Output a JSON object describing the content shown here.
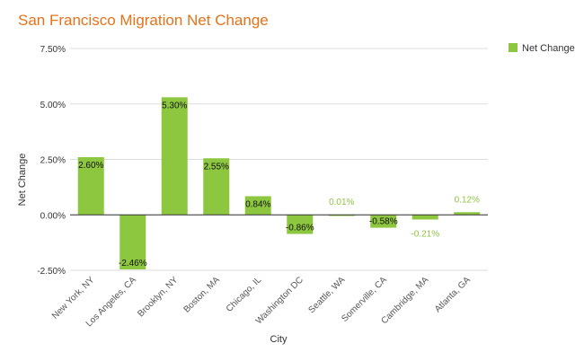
{
  "chart_data": {
    "type": "bar",
    "title": "San Francisco Migration Net Change",
    "xlabel": "City",
    "ylabel": "Net Change",
    "categories": [
      "New York, NY",
      "Los Angeles, CA",
      "Brooklyn, NY",
      "Boston, MA",
      "Chicago, IL",
      "Washington DC",
      "Seattle, WA",
      "Somerville, CA",
      "Cambridge, MA",
      "Atlanta, GA"
    ],
    "series": [
      {
        "name": "Net Change",
        "values": [
          2.6,
          -2.46,
          5.3,
          2.55,
          0.84,
          -0.86,
          0.01,
          -0.58,
          -0.21,
          0.12
        ],
        "labels": [
          "2.60%",
          "-2.46%",
          "5.30%",
          "2.55%",
          "0.84%",
          "-0.86%",
          "0.01%",
          "-0.58%",
          "-0.21%",
          "0.12%"
        ]
      }
    ],
    "yticks": [
      7.5,
      5.0,
      2.5,
      0.0,
      -2.5
    ],
    "ytick_labels": [
      "7.50%",
      "5.00%",
      "2.50%",
      "0.00%",
      "-2.50%"
    ],
    "ylim": [
      -2.5,
      7.5
    ],
    "grid": true,
    "legend_position": "top-right",
    "colors": {
      "bar": "#8dc63f",
      "bar_label_outside": "#8dc63f",
      "title": "#e8711a",
      "grid": "#dddddd",
      "axis": "#333333",
      "text": "#555555"
    }
  }
}
